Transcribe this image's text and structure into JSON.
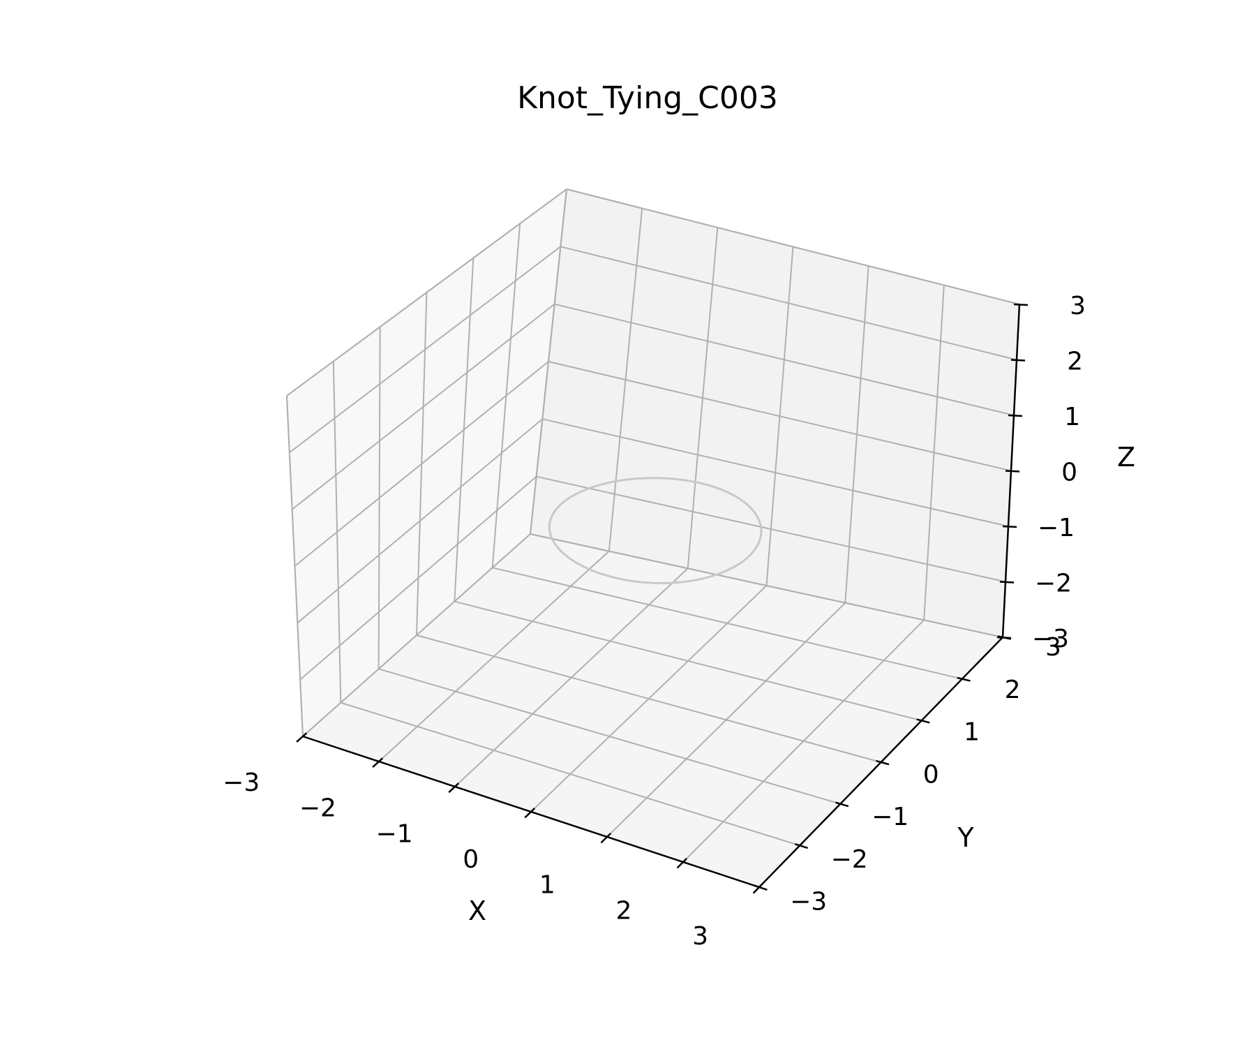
{
  "chart_data": {
    "type": "line",
    "projection": "3d",
    "title": "Knot_Tying_C003",
    "xlabel": "X",
    "ylabel": "Y",
    "zlabel": "Z",
    "xlim": [
      -3,
      3
    ],
    "ylim": [
      -3,
      3
    ],
    "zlim": [
      -3,
      3
    ],
    "xticks": [
      "−3",
      "−2",
      "−1",
      "0",
      "1",
      "2",
      "3"
    ],
    "yticks": [
      "−3",
      "−2",
      "−1",
      "0",
      "1",
      "2",
      "3"
    ],
    "zticks": [
      "−3",
      "−2",
      "−1",
      "0",
      "1",
      "2",
      "3"
    ],
    "grid": true,
    "series": [
      {
        "shape": "ellipse",
        "center": [
          0,
          0,
          0
        ],
        "radius": 1.2,
        "color": "#c8c8c8"
      }
    ],
    "colors": {
      "pane_back": "#f2f2f2",
      "pane_left": "#f8f8f8",
      "pane_floor": "#f5f5f5",
      "grid": "#b0b0b0",
      "axis": "#000000"
    }
  }
}
